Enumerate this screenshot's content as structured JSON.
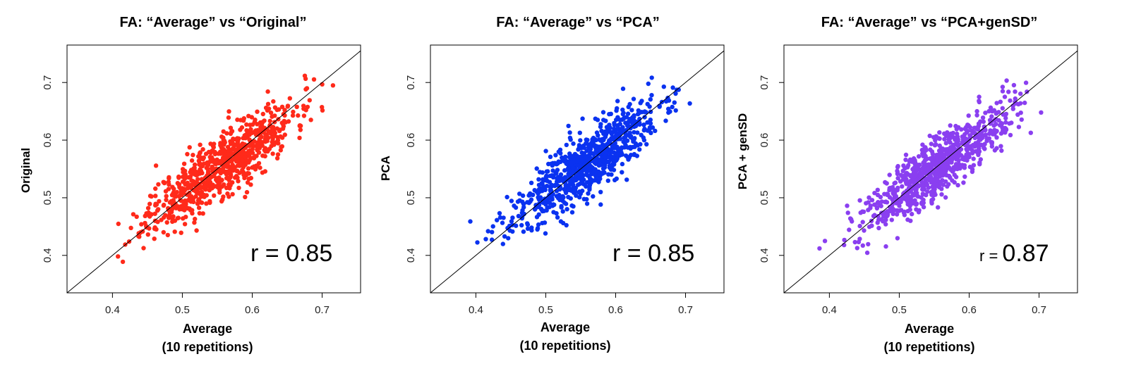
{
  "chart_data": [
    {
      "type": "scatter",
      "title": "FA: “Average” vs “Original”",
      "xlabel": "Average",
      "xlabel_sub": "(10 repetitions)",
      "ylabel": "Original",
      "xlim": [
        0.335,
        0.755
      ],
      "ylim": [
        0.335,
        0.765
      ],
      "xticks": [
        "0.4",
        "0.5",
        "0.6",
        "0.7"
      ],
      "yticks": [
        "0.4",
        "0.5",
        "0.6",
        "0.7"
      ],
      "color": "#ff2a1a",
      "annotation_prefix": "r = ",
      "annotation_value": "0.85",
      "r": 0.85,
      "n_points": 800,
      "reference_line": "y = x",
      "seed": 11
    },
    {
      "type": "scatter",
      "title": "FA: “Average” vs “PCA”",
      "xlabel": "Average",
      "xlabel_sub": "(10 repetitions)",
      "ylabel": "PCA",
      "xlim": [
        0.335,
        0.755
      ],
      "ylim": [
        0.335,
        0.765
      ],
      "xticks": [
        "0.4",
        "0.5",
        "0.6",
        "0.7"
      ],
      "yticks": [
        "0.4",
        "0.5",
        "0.6",
        "0.7"
      ],
      "color": "#0a32f0",
      "annotation_prefix": "r = ",
      "annotation_value": "0.85",
      "r": 0.85,
      "n_points": 800,
      "reference_line": "y = x",
      "seed": 23
    },
    {
      "type": "scatter",
      "title": "FA: “Average” vs “PCA+genSD”",
      "xlabel": "Average",
      "xlabel_sub": "(10 repetitions)",
      "ylabel": "PCA + genSD",
      "xlim": [
        0.335,
        0.755
      ],
      "ylim": [
        0.335,
        0.765
      ],
      "xticks": [
        "0.4",
        "0.5",
        "0.6",
        "0.7"
      ],
      "yticks": [
        "0.4",
        "0.5",
        "0.6",
        "0.7"
      ],
      "color": "#8a3ff0",
      "annotation_prefix": "r = ",
      "annotation_value": "0.87",
      "r": 0.87,
      "n_points": 800,
      "reference_line": "y = x",
      "seed": 37
    }
  ]
}
